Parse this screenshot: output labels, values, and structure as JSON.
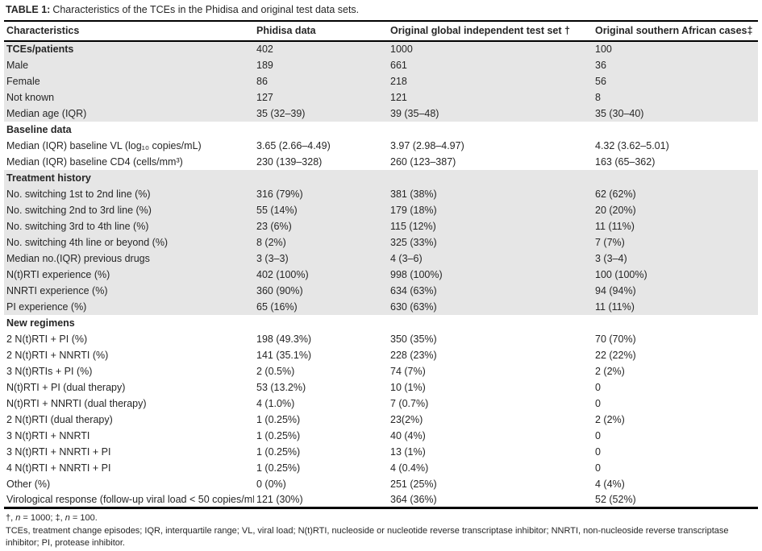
{
  "title": {
    "prefix": "TABLE 1:",
    "text": "Characteristics of the TCEs in the Phidisa and original test data sets."
  },
  "table": {
    "columns": [
      {
        "label": "Characteristics"
      },
      {
        "label": "Phidisa data"
      },
      {
        "label": "Original global independent test set †"
      },
      {
        "label": "Original southern African cases‡"
      }
    ],
    "sections": [
      {
        "name": "demographics",
        "shaded": true,
        "header": null,
        "rows": [
          {
            "label": "TCEs/patients",
            "bold": true,
            "values": [
              "402",
              "1000",
              "100"
            ]
          },
          {
            "label": "Male",
            "values": [
              "189",
              "661",
              "36"
            ]
          },
          {
            "label": "Female",
            "values": [
              "86",
              "218",
              "56"
            ]
          },
          {
            "label": "Not known",
            "values": [
              "127",
              "121",
              "8"
            ]
          },
          {
            "label": "Median age (IQR)",
            "values": [
              "35 (32–39)",
              "39 (35–48)",
              "35 (30–40)"
            ]
          }
        ]
      },
      {
        "name": "baseline-data",
        "shaded": false,
        "header": "Baseline data",
        "rows": [
          {
            "label": "Median (IQR) baseline VL (log₁₀ copies/mL)",
            "values": [
              "3.65 (2.66–4.49)",
              "3.97 (2.98–4.97)",
              "4.32 (3.62–5.01)"
            ]
          },
          {
            "label": "Median (IQR) baseline CD4 (cells/mm³)",
            "values": [
              "230 (139–328)",
              "260 (123–387)",
              "163 (65–362)"
            ]
          }
        ]
      },
      {
        "name": "treatment-history",
        "shaded": true,
        "header": "Treatment history",
        "rows": [
          {
            "label": "No. switching 1st to 2nd line (%)",
            "values": [
              "316 (79%)",
              "381 (38%)",
              "62 (62%)"
            ]
          },
          {
            "label": "No. switching 2nd to 3rd line (%)",
            "values": [
              "55 (14%)",
              "179 (18%)",
              "20 (20%)"
            ]
          },
          {
            "label": "No. switching 3rd to 4th line (%)",
            "values": [
              "23 (6%)",
              "115 (12%)",
              "11 (11%)"
            ]
          },
          {
            "label": "No. switching 4th line or beyond (%)",
            "values": [
              "8 (2%)",
              "325 (33%)",
              "7 (7%)"
            ]
          },
          {
            "label": "Median no.(IQR) previous drugs",
            "values": [
              "3 (3–3)",
              "4 (3–6)",
              "3 (3–4)"
            ]
          },
          {
            "label": "N(t)RTI experience (%)",
            "values": [
              "402 (100%)",
              "998 (100%)",
              "100 (100%)"
            ]
          },
          {
            "label": "NNRTI experience (%)",
            "values": [
              "360 (90%)",
              "634 (63%)",
              "94 (94%)"
            ]
          },
          {
            "label": "PI experience (%)",
            "values": [
              "65 (16%)",
              "630 (63%)",
              "11 (11%)"
            ]
          }
        ]
      },
      {
        "name": "new-regimens",
        "shaded": false,
        "header": "New regimens",
        "rows": [
          {
            "label": "2 N(t)RTI + PI (%)",
            "values": [
              "198 (49.3%)",
              "350 (35%)",
              "70 (70%)"
            ]
          },
          {
            "label": "2 N(t)RTI + NNRTI (%)",
            "values": [
              "141 (35.1%)",
              "228 (23%)",
              "22 (22%)"
            ]
          },
          {
            "label": "3 N(t)RTIs + PI (%)",
            "values": [
              "2 (0.5%)",
              "74 (7%)",
              "2 (2%)"
            ]
          },
          {
            "label": "N(t)RTI + PI (dual therapy)",
            "values": [
              "53 (13.2%)",
              "10 (1%)",
              "0"
            ]
          },
          {
            "label": "N(t)RTI + NNRTI (dual therapy)",
            "values": [
              "4 (1.0%)",
              "7 (0.7%)",
              "0"
            ]
          },
          {
            "label": "2 N(t)RTI (dual therapy)",
            "values": [
              "1 (0.25%)",
              "23(2%)",
              "2 (2%)"
            ]
          },
          {
            "label": "3 N(t)RTI + NNRTI",
            "values": [
              "1 (0.25%)",
              "40 (4%)",
              "0"
            ]
          },
          {
            "label": "3 N(t)RTI + NNRTI + PI",
            "values": [
              "1 (0.25%)",
              "13 (1%)",
              "0"
            ]
          },
          {
            "label": "4 N(t)RTI + NNRTI + PI",
            "values": [
              "1 (0.25%)",
              "4 (0.4%)",
              "0"
            ]
          },
          {
            "label": "Other (%)",
            "values": [
              "0 (0%)",
              "251 (25%)",
              "4 (4%)"
            ]
          },
          {
            "label": "Virological response (follow-up viral load < 50 copies/mL)",
            "values": [
              "121 (30%)",
              "364 (36%)",
              "52 (52%)"
            ]
          }
        ]
      }
    ]
  },
  "footnotes": {
    "symbols": "†, n = 1000; ‡, n = 100.",
    "abbreviations": "TCEs, treatment change episodes; IQR, interquartile range; VL, viral load; N(t)RTI, nucleoside or nucleotide reverse transcriptase inhibitor; NNRTI, non-nucleoside reverse transcriptase inhibitor; PI, protease inhibitor."
  },
  "colors": {
    "row_shade": "#e6e6e6",
    "border": "#000000",
    "text": "#262626"
  }
}
